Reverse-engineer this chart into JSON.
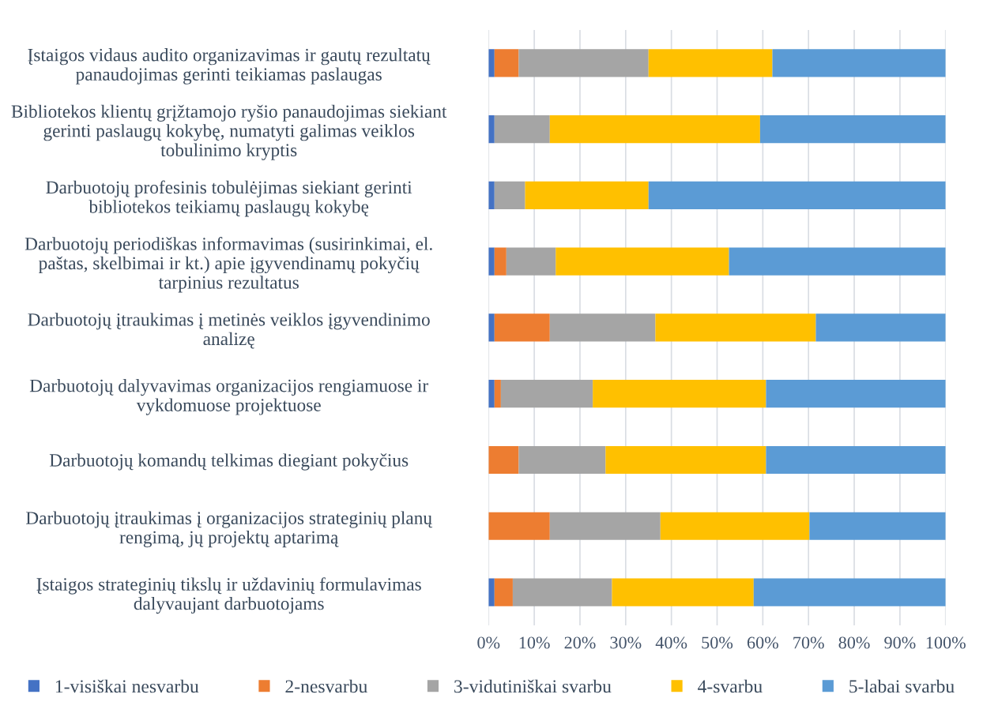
{
  "chart_data": {
    "type": "bar",
    "orientation": "horizontal",
    "stacked": true,
    "categories": [
      "Įstaigos vidaus audito organizavimas ir gautų rezultatų\npanaudojimas gerinti teikiamas paslaugas",
      "Bibliotekos klientų grįžtamojo ryšio panaudojimas siekiant\ngerinti paslaugų kokybę, numatyti galimas veiklos\ntobulinimo kryptis",
      "Darbuotojų profesinis tobulėjimas siekiant gerinti\nbibliotekos teikiamų paslaugų kokybę",
      "Darbuotojų periodiškas informavimas (susirinkimai, el.\npaštas, skelbimai ir kt.) apie įgyvendinamų pokyčių\ntarpinius rezultatus",
      "Darbuotojų įtraukimas į metinės veiklos įgyvendinimo\nanalizę",
      "Darbuotojų dalyvavimas organizacijos rengiamuose ir\nvykdomuose projektuose",
      "Darbuotojų komandų telkimas diegiant pokyčius",
      "Darbuotojų įtraukimas į organizacijos strateginių planų\nrengimą, jų projektų aptarimą",
      "Įstaigos strateginių tikslų ir uždavinių formulavimas\ndalyvaujant darbuotojams"
    ],
    "series": [
      {
        "name": "1-visiškai nesvarbu",
        "color": "#4472c4",
        "values": [
          1.3,
          1.3,
          1.3,
          1.3,
          1.3,
          1.3,
          0,
          0,
          1.3
        ]
      },
      {
        "name": "2-nesvarbu",
        "color": "#ed7d31",
        "values": [
          5.3,
          0,
          0,
          2.6,
          12.1,
          1.4,
          6.6,
          13.4,
          4.0
        ]
      },
      {
        "name": "3-vidutiniškai svarbu",
        "color": "#a5a5a5",
        "values": [
          28.4,
          12.1,
          6.7,
          10.8,
          23.1,
          20.1,
          19.0,
          24.2,
          21.7
        ]
      },
      {
        "name": "4-svarbu",
        "color": "#ffc000",
        "values": [
          27.1,
          46.0,
          27.0,
          37.9,
          35.1,
          37.9,
          35.1,
          32.6,
          31.0
        ]
      },
      {
        "name": "5-labai svarbu",
        "color": "#5b9bd5",
        "values": [
          37.9,
          40.6,
          65.0,
          47.4,
          28.4,
          39.3,
          39.3,
          29.8,
          42.0
        ]
      }
    ],
    "xlim": [
      0,
      100
    ],
    "xticks": [
      {
        "value": 0,
        "label": "0%"
      },
      {
        "value": 10,
        "label": "10%"
      },
      {
        "value": 20,
        "label": "20%"
      },
      {
        "value": 30,
        "label": "30%"
      },
      {
        "value": 40,
        "label": "40%"
      },
      {
        "value": 50,
        "label": "50%"
      },
      {
        "value": 60,
        "label": "60%"
      },
      {
        "value": 70,
        "label": "70%"
      },
      {
        "value": 80,
        "label": "80%"
      },
      {
        "value": 90,
        "label": "90%"
      },
      {
        "value": 100,
        "label": "100%"
      }
    ],
    "grid": "x",
    "legend": "bottom"
  }
}
